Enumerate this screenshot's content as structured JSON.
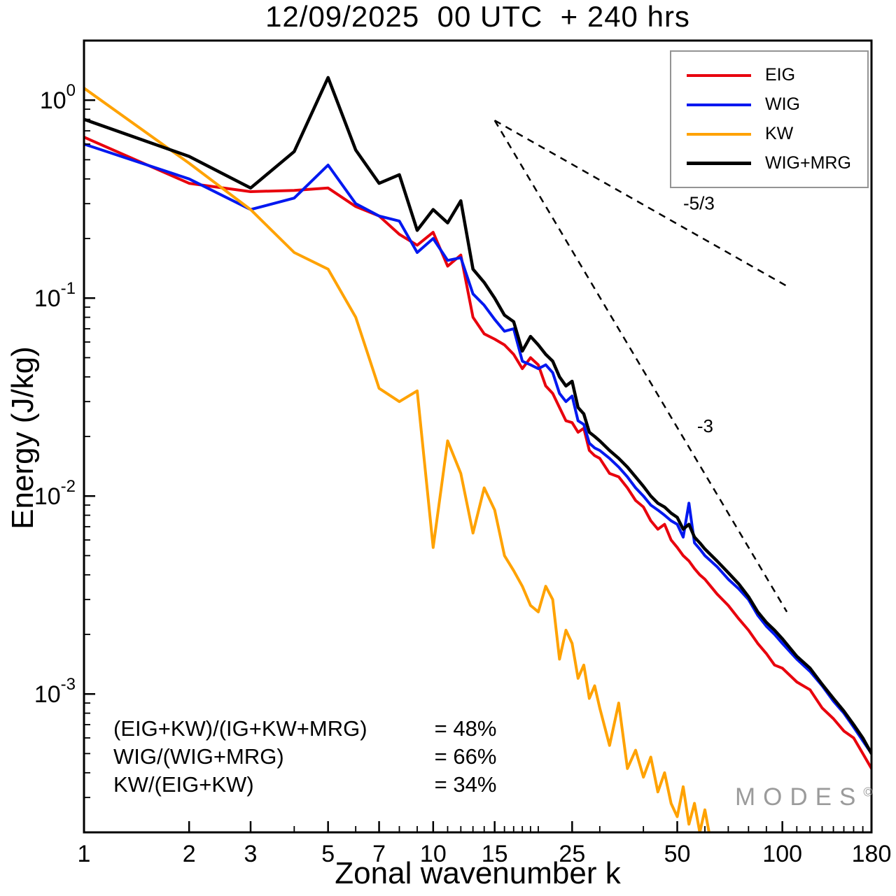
{
  "chart_data": {
    "type": "line",
    "title": "12/09/2025  00 UTC  + 240 hrs",
    "xlabel": "Zonal wavenumber k",
    "ylabel": "Energy (J/kg)",
    "x_scale": "log",
    "y_scale": "log",
    "xlim": [
      1,
      180
    ],
    "ylim": [
      0.0002,
      2.0
    ],
    "grid": false,
    "legend_position": "top-right",
    "x_ticks": [
      1,
      2,
      3,
      5,
      7,
      10,
      15,
      25,
      50,
      100,
      180
    ],
    "x_minor_ticks": [
      4,
      6,
      8,
      9,
      11,
      12,
      13,
      14,
      16,
      17,
      18,
      19,
      20,
      30,
      40,
      60,
      70,
      80,
      90,
      110,
      120,
      130,
      140,
      150,
      160,
      170
    ],
    "y_tick_exps": [
      0,
      -1,
      -2,
      -3
    ],
    "series": [
      {
        "name": "EIG",
        "color": "#e8000d",
        "k": [
          1,
          2,
          3,
          4,
          5,
          6,
          7,
          8,
          9,
          10,
          11,
          12,
          13,
          14,
          15,
          16,
          17,
          18,
          19,
          20,
          21,
          22,
          23,
          24,
          25,
          26,
          27,
          28,
          29,
          30,
          32,
          34,
          36,
          38,
          40,
          42,
          44,
          46,
          48,
          50,
          52,
          54,
          56,
          58,
          60,
          65,
          70,
          75,
          80,
          85,
          90,
          95,
          100,
          110,
          120,
          130,
          140,
          150,
          160,
          170,
          180
        ],
        "e": [
          0.65,
          0.38,
          0.345,
          0.35,
          0.36,
          0.29,
          0.26,
          0.21,
          0.185,
          0.215,
          0.145,
          0.165,
          0.08,
          0.066,
          0.062,
          0.058,
          0.052,
          0.044,
          0.05,
          0.046,
          0.036,
          0.033,
          0.028,
          0.024,
          0.0235,
          0.021,
          0.022,
          0.017,
          0.016,
          0.0155,
          0.013,
          0.0125,
          0.011,
          0.0095,
          0.0088,
          0.0075,
          0.0068,
          0.0072,
          0.006,
          0.0055,
          0.005,
          0.0047,
          0.0043,
          0.004,
          0.0038,
          0.0032,
          0.0028,
          0.0024,
          0.0021,
          0.0018,
          0.0016,
          0.0014,
          0.00135,
          0.00115,
          0.00105,
          0.00085,
          0.00075,
          0.00065,
          0.0006,
          0.0005,
          0.00042
        ]
      },
      {
        "name": "WIG",
        "color": "#0018f0",
        "k": [
          1,
          2,
          3,
          4,
          5,
          6,
          7,
          8,
          9,
          10,
          11,
          12,
          13,
          14,
          15,
          16,
          17,
          18,
          19,
          20,
          21,
          22,
          23,
          24,
          25,
          26,
          27,
          28,
          29,
          30,
          32,
          34,
          36,
          38,
          40,
          42,
          44,
          46,
          48,
          50,
          52,
          54,
          56,
          58,
          60,
          65,
          70,
          75,
          80,
          85,
          90,
          95,
          100,
          110,
          120,
          130,
          140,
          150,
          160,
          170,
          180
        ],
        "e": [
          0.6,
          0.4,
          0.28,
          0.32,
          0.47,
          0.3,
          0.26,
          0.245,
          0.17,
          0.2,
          0.155,
          0.16,
          0.105,
          0.092,
          0.078,
          0.068,
          0.07,
          0.048,
          0.046,
          0.044,
          0.046,
          0.042,
          0.033,
          0.03,
          0.032,
          0.024,
          0.023,
          0.0185,
          0.0175,
          0.017,
          0.0155,
          0.014,
          0.0125,
          0.011,
          0.01,
          0.009,
          0.0085,
          0.008,
          0.0075,
          0.0072,
          0.0062,
          0.0092,
          0.0058,
          0.0054,
          0.005,
          0.0044,
          0.0038,
          0.0034,
          0.003,
          0.0025,
          0.0022,
          0.002,
          0.0018,
          0.0015,
          0.0013,
          0.0011,
          0.00092,
          0.0008,
          0.00068,
          0.00058,
          0.0005
        ]
      },
      {
        "name": "KW",
        "color": "#ffa200",
        "k": [
          1,
          2,
          3,
          4,
          5,
          6,
          7,
          8,
          9,
          10,
          11,
          12,
          13,
          14,
          15,
          16,
          17,
          18,
          19,
          20,
          21,
          22,
          23,
          24,
          25,
          26,
          27,
          28,
          29,
          30,
          32,
          34,
          36,
          38,
          40,
          42,
          44,
          46,
          48,
          50,
          52,
          54,
          56,
          58,
          60,
          62
        ],
        "e": [
          1.15,
          0.48,
          0.28,
          0.17,
          0.14,
          0.08,
          0.035,
          0.03,
          0.034,
          0.0055,
          0.019,
          0.013,
          0.0065,
          0.011,
          0.0085,
          0.005,
          0.0042,
          0.0035,
          0.0028,
          0.0026,
          0.0035,
          0.003,
          0.0015,
          0.0021,
          0.0018,
          0.0012,
          0.0014,
          0.00095,
          0.0011,
          0.00085,
          0.00055,
          0.0009,
          0.00042,
          0.00052,
          0.00038,
          0.00048,
          0.00032,
          0.0004,
          0.00028,
          0.00024,
          0.00034,
          0.00022,
          0.00028,
          0.0002,
          0.00026,
          0.00019
        ]
      },
      {
        "name": "WIG+MRG",
        "color": "#000000",
        "k": [
          1,
          2,
          3,
          4,
          5,
          6,
          7,
          8,
          9,
          10,
          11,
          12,
          13,
          14,
          15,
          16,
          17,
          18,
          19,
          20,
          21,
          22,
          23,
          24,
          25,
          26,
          27,
          28,
          29,
          30,
          32,
          34,
          36,
          38,
          40,
          42,
          44,
          46,
          48,
          50,
          52,
          54,
          56,
          58,
          60,
          65,
          70,
          75,
          80,
          85,
          90,
          95,
          100,
          110,
          120,
          130,
          140,
          150,
          160,
          170,
          180
        ],
        "e": [
          0.8,
          0.52,
          0.36,
          0.55,
          1.3,
          0.56,
          0.38,
          0.42,
          0.22,
          0.28,
          0.24,
          0.31,
          0.14,
          0.12,
          0.1,
          0.082,
          0.076,
          0.054,
          0.064,
          0.058,
          0.052,
          0.048,
          0.04,
          0.036,
          0.038,
          0.028,
          0.026,
          0.021,
          0.02,
          0.019,
          0.017,
          0.0155,
          0.014,
          0.0125,
          0.0112,
          0.01,
          0.0092,
          0.0088,
          0.0082,
          0.0078,
          0.0068,
          0.0072,
          0.0062,
          0.0058,
          0.0054,
          0.0047,
          0.0041,
          0.0036,
          0.0031,
          0.0026,
          0.0023,
          0.0021,
          0.0019,
          0.00155,
          0.00135,
          0.00112,
          0.00095,
          0.00082,
          0.0007,
          0.0006,
          0.0005
        ]
      }
    ],
    "reference_lines": [
      {
        "label": "-5/3",
        "x1": 15,
        "y1": 0.79,
        "x2": 103,
        "y2": 0.115,
        "label_x": 52,
        "label_y": 0.28
      },
      {
        "label": "-3",
        "x1": 15,
        "y1": 0.79,
        "x2": 103,
        "y2": 0.0026,
        "label_x": 57,
        "label_y": 0.021
      }
    ]
  },
  "annotations": [
    {
      "expr": "(EIG+KW)/(IG+KW+MRG)",
      "value": "= 48%"
    },
    {
      "expr": "WIG/(WIG+MRG)",
      "value": "= 66%"
    },
    {
      "expr": "KW/(EIG+KW)",
      "value": "= 34%"
    }
  ],
  "watermark": {
    "text": "MODES",
    "sup": "©"
  }
}
